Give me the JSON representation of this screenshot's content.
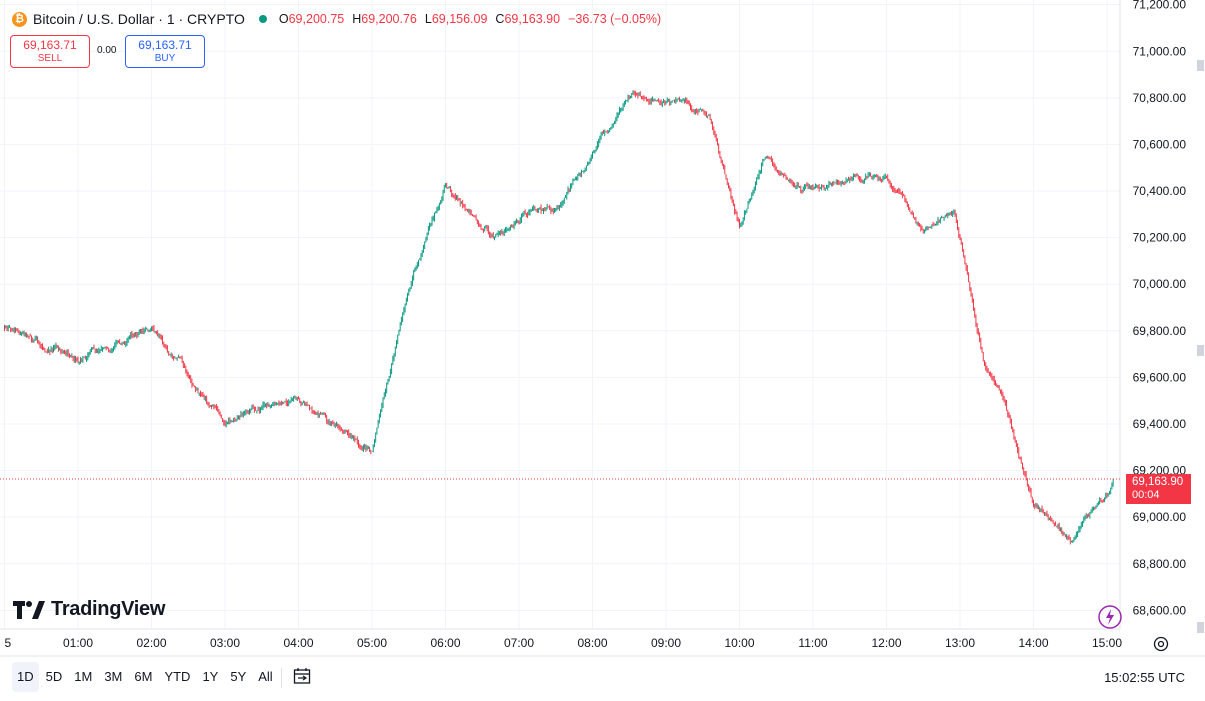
{
  "header": {
    "symbol": "Bitcoin / U.S. Dollar · 1 · CRYPTO",
    "coin_icon": "bitcoin-icon",
    "ohlc": [
      {
        "k": "O",
        "v": "69,200.75"
      },
      {
        "k": "H",
        "v": "69,200.76"
      },
      {
        "k": "L",
        "v": "69,156.09"
      },
      {
        "k": "C",
        "v": "69,163.90"
      }
    ],
    "change": "−36.73 (−0.05%)"
  },
  "trade": {
    "sell_price": "69,163.71",
    "sell_label": "SELL",
    "spread": "0.00",
    "buy_price": "69,163.71",
    "buy_label": "BUY"
  },
  "brand": {
    "name": "TradingView"
  },
  "last_price": {
    "value": "69,163.90",
    "countdown": "00:04"
  },
  "colors": {
    "up": "#089981",
    "down": "#f23645",
    "grid": "#f0f3fa",
    "axis_text": "#131722"
  },
  "ranges": [
    "1D",
    "5D",
    "1M",
    "3M",
    "6M",
    "YTD",
    "1Y",
    "5Y",
    "All"
  ],
  "active_range": "1D",
  "clock": "15:02:55 UTC",
  "chart_data": {
    "type": "candlestick",
    "y_ticks": [
      "68,600.00",
      "68,800.00",
      "69,000.00",
      "69,200.00",
      "69,400.00",
      "69,600.00",
      "69,800.00",
      "70,000.00",
      "70,200.00",
      "70,400.00",
      "70,600.00",
      "70,800.00",
      "71,000.00",
      "71,200.00"
    ],
    "x_ticks": [
      "5",
      "01:00",
      "02:00",
      "03:00",
      "04:00",
      "05:00",
      "06:00",
      "07:00",
      "08:00",
      "09:00",
      "10:00",
      "11:00",
      "12:00",
      "13:00",
      "14:00",
      "15:00"
    ],
    "ylim": [
      68520,
      71220
    ],
    "x_anchors": [
      0,
      60,
      120,
      180,
      215,
      240,
      300,
      330,
      360,
      400,
      430,
      450,
      510,
      575,
      600,
      620,
      650,
      720,
      750,
      775,
      800,
      815,
      840,
      870,
      900,
      905
    ],
    "price_anchors": [
      69820,
      69680,
      69820,
      69400,
      69480,
      69500,
      69280,
      70000,
      70430,
      70200,
      70320,
      70300,
      70820,
      70740,
      70240,
      70530,
      70400,
      70470,
      70240,
      70340,
      69650,
      69500,
      69050,
      68900,
      69080,
      69164
    ],
    "last_value": 69163.9
  }
}
